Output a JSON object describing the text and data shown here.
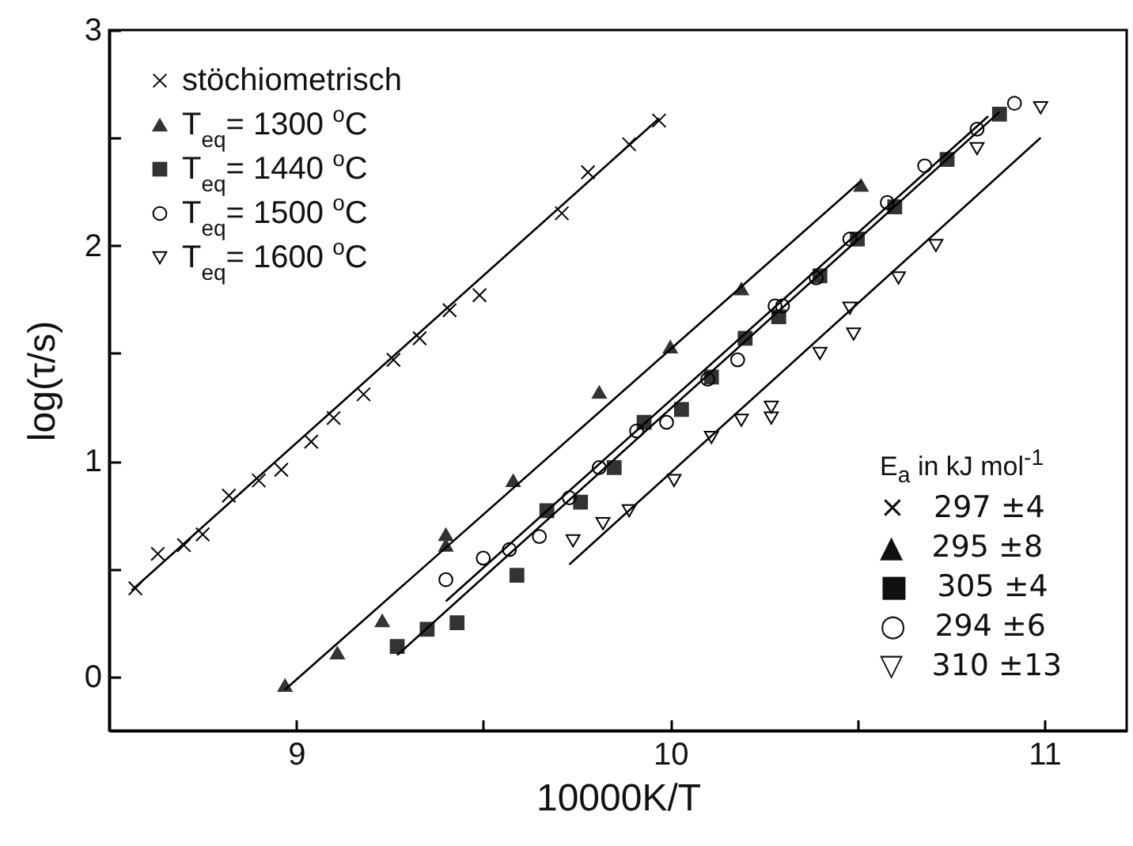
{
  "chart_data": {
    "type": "scatter",
    "xlabel": "10000K/T",
    "ylabel": "log(τ/s)",
    "xlim": [
      8.5,
      11.22
    ],
    "ylim": [
      -0.25,
      3
    ],
    "xticks": [
      9,
      {
        "value": 9.5,
        "label": null
      },
      10,
      {
        "value": 10.5,
        "label": null
      },
      11
    ],
    "yticks": [
      0,
      {
        "value": 0.5,
        "label": null
      },
      1,
      {
        "value": 1.5,
        "label": null
      },
      2,
      {
        "value": 2.5,
        "label": null
      },
      3
    ],
    "grid": false,
    "legend": "top left",
    "annotations": [
      "E$_{a}$ in kJ mol$^{-1}$",
      "×   297 ±4",
      "▲   295 ±8",
      "■   305 ±4",
      "○   294 ±6",
      "▽   310 ±13"
    ],
    "series": [
      {
        "name": "stöchiometrisch",
        "marker": "cross",
        "color": "#000000",
        "x": [
          8.57,
          8.63,
          8.7,
          8.75,
          8.82,
          8.9,
          8.96,
          9.04,
          9.1,
          9.18,
          9.26,
          9.33,
          9.41,
          9.49,
          9.71,
          9.78,
          9.89,
          9.97
        ],
        "values": [
          0.41,
          0.57,
          0.61,
          0.66,
          0.84,
          0.91,
          0.96,
          1.09,
          1.2,
          1.31,
          1.47,
          1.57,
          1.7,
          1.77,
          2.15,
          2.34,
          2.47,
          2.58
        ]
      },
      {
        "name": "T$_{eq}$= 1300 $^{o}$C",
        "marker": "triangle",
        "color": "#333333",
        "x": [
          8.97,
          9.11,
          9.23,
          9.4,
          9.4,
          9.58,
          9.81,
          10.0,
          10.19,
          10.51
        ],
        "values": [
          -0.04,
          0.11,
          0.26,
          0.66,
          0.61,
          0.91,
          1.32,
          1.53,
          1.8,
          2.28
        ]
      },
      {
        "name": "T$_{eq}$= 1440 $^{o}$C",
        "marker": "square",
        "color": "#333333",
        "x": [
          9.27,
          9.35,
          9.43,
          9.59,
          9.67,
          9.76,
          9.85,
          9.93,
          10.03,
          10.11,
          10.2,
          10.29,
          10.4,
          10.5,
          10.6,
          10.74,
          10.88
        ],
        "values": [
          0.14,
          0.22,
          0.25,
          0.47,
          0.77,
          0.81,
          0.97,
          1.18,
          1.24,
          1.39,
          1.57,
          1.67,
          1.86,
          2.03,
          2.18,
          2.4,
          2.61
        ]
      },
      {
        "name": "T$_{eq}$= 1500 $^{o}$C",
        "marker": "circle",
        "color": "#000000",
        "x": [
          9.4,
          9.5,
          9.57,
          9.65,
          9.73,
          9.81,
          9.91,
          9.99,
          10.1,
          10.18,
          10.28,
          10.3,
          10.39,
          10.48,
          10.58,
          10.68,
          10.82,
          10.92
        ],
        "values": [
          0.45,
          0.55,
          0.59,
          0.65,
          0.83,
          0.97,
          1.14,
          1.18,
          1.38,
          1.47,
          1.72,
          1.72,
          1.85,
          2.03,
          2.2,
          2.37,
          2.54,
          2.66
        ]
      },
      {
        "name": "T$_{eq}$= 1600 $^{o}$C",
        "marker": "triangle-down",
        "color": "#000000",
        "x": [
          9.74,
          9.82,
          9.89,
          10.01,
          10.11,
          10.19,
          10.27,
          10.27,
          10.4,
          10.49,
          10.48,
          10.61,
          10.71,
          10.82,
          10.99
        ],
        "values": [
          0.63,
          0.71,
          0.77,
          0.91,
          1.11,
          1.19,
          1.25,
          1.2,
          1.5,
          1.59,
          1.71,
          1.85,
          2.0,
          2.45,
          2.64
        ]
      },
      {
        "type": "line",
        "color": "#000000",
        "x": [
          8.56,
          9.97
        ],
        "values": [
          0.4,
          2.59
        ]
      },
      {
        "type": "line",
        "color": "#000000",
        "x": [
          8.97,
          10.51
        ],
        "values": [
          -0.06,
          2.3
        ]
      },
      {
        "type": "line",
        "color": "#000000",
        "x": [
          9.27,
          10.88
        ],
        "values": [
          0.1,
          2.62
        ]
      },
      {
        "type": "line",
        "color": "#000000",
        "x": [
          9.4,
          10.85
        ],
        "values": [
          0.35,
          2.6
        ]
      },
      {
        "type": "line",
        "color": "#000000",
        "x": [
          9.73,
          10.99
        ],
        "values": [
          0.52,
          2.5
        ]
      }
    ]
  }
}
